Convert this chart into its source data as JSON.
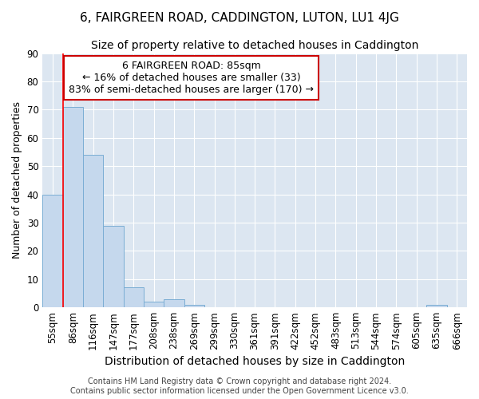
{
  "title": "6, FAIRGREEN ROAD, CADDINGTON, LUTON, LU1 4JG",
  "subtitle": "Size of property relative to detached houses in Caddington",
  "xlabel": "Distribution of detached houses by size in Caddington",
  "ylabel": "Number of detached properties",
  "bins": [
    "55sqm",
    "86sqm",
    "116sqm",
    "147sqm",
    "177sqm",
    "208sqm",
    "238sqm",
    "269sqm",
    "299sqm",
    "330sqm",
    "361sqm",
    "391sqm",
    "422sqm",
    "452sqm",
    "483sqm",
    "513sqm",
    "544sqm",
    "574sqm",
    "605sqm",
    "635sqm",
    "666sqm"
  ],
  "bar_values": [
    40,
    71,
    54,
    29,
    7,
    2,
    3,
    1,
    0,
    0,
    0,
    0,
    0,
    0,
    0,
    0,
    0,
    0,
    0,
    1,
    0
  ],
  "bar_color": "#c5d8ed",
  "bar_edge_color": "#7aadd4",
  "red_line_x": 0.5,
  "annotation_title": "6 FAIRGREEN ROAD: 85sqm",
  "annotation_line1": "← 16% of detached houses are smaller (33)",
  "annotation_line2": "83% of semi-detached houses are larger (170) →",
  "annotation_box_color": "#ffffff",
  "annotation_box_edge": "#cc0000",
  "ylim": [
    0,
    90
  ],
  "yticks": [
    0,
    10,
    20,
    30,
    40,
    50,
    60,
    70,
    80,
    90
  ],
  "background_color": "#dce6f1",
  "footer_line1": "Contains HM Land Registry data © Crown copyright and database right 2024.",
  "footer_line2": "Contains public sector information licensed under the Open Government Licence v3.0.",
  "title_fontsize": 11,
  "subtitle_fontsize": 10,
  "ylabel_fontsize": 9,
  "xlabel_fontsize": 10,
  "tick_fontsize": 8.5,
  "annotation_fontsize": 9,
  "footer_fontsize": 7
}
